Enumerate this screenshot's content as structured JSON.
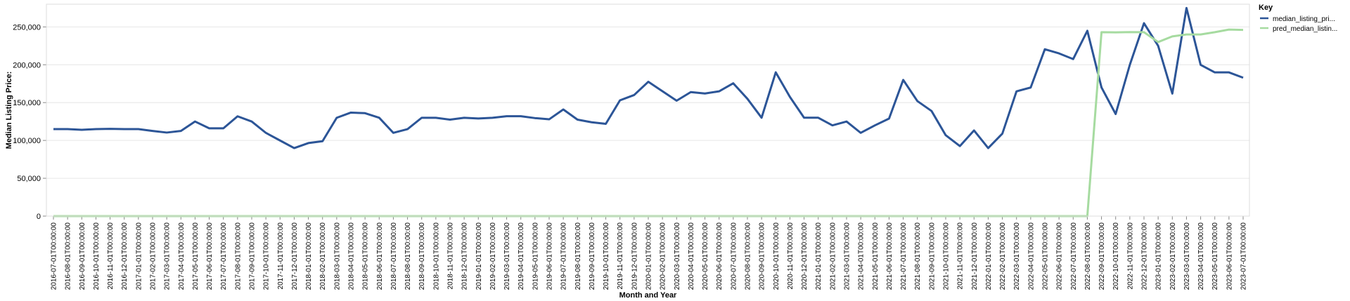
{
  "chart_data": {
    "type": "line",
    "title": "",
    "xlabel": "Month and Year",
    "ylabel": "Median Listing Price:",
    "ylim": [
      0,
      280000
    ],
    "yticks": [
      0,
      50000,
      100000,
      150000,
      200000,
      250000
    ],
    "ytick_labels": [
      "0",
      "50,000",
      "100,000",
      "150,000",
      "200,000",
      "250,000"
    ],
    "grid": true,
    "legend": {
      "title": "Key",
      "placement": "top-right"
    },
    "x": [
      "2016-07-01T00:00:00",
      "2016-08-01T00:00:00",
      "2016-09-01T00:00:00",
      "2016-10-01T00:00:00",
      "2016-11-01T00:00:00",
      "2016-12-01T00:00:00",
      "2017-01-01T00:00:00",
      "2017-02-01T00:00:00",
      "2017-03-01T00:00:00",
      "2017-04-01T00:00:00",
      "2017-05-01T00:00:00",
      "2017-06-01T00:00:00",
      "2017-07-01T00:00:00",
      "2017-08-01T00:00:00",
      "2017-09-01T00:00:00",
      "2017-10-01T00:00:00",
      "2017-11-01T00:00:00",
      "2017-12-01T00:00:00",
      "2018-01-01T00:00:00",
      "2018-02-01T00:00:00",
      "2018-03-01T00:00:00",
      "2018-04-01T00:00:00",
      "2018-05-01T00:00:00",
      "2018-06-01T00:00:00",
      "2018-07-01T00:00:00",
      "2018-08-01T00:00:00",
      "2018-09-01T00:00:00",
      "2018-10-01T00:00:00",
      "2018-11-01T00:00:00",
      "2018-12-01T00:00:00",
      "2019-01-01T00:00:00",
      "2019-02-01T00:00:00",
      "2019-03-01T00:00:00",
      "2019-04-01T00:00:00",
      "2019-05-01T00:00:00",
      "2019-06-01T00:00:00",
      "2019-07-01T00:00:00",
      "2019-08-01T00:00:00",
      "2019-09-01T00:00:00",
      "2019-10-01T00:00:00",
      "2019-11-01T00:00:00",
      "2019-12-01T00:00:00",
      "2020-01-01T00:00:00",
      "2020-02-01T00:00:00",
      "2020-03-01T00:00:00",
      "2020-04-01T00:00:00",
      "2020-05-01T00:00:00",
      "2020-06-01T00:00:00",
      "2020-07-01T00:00:00",
      "2020-08-01T00:00:00",
      "2020-09-01T00:00:00",
      "2020-10-01T00:00:00",
      "2020-11-01T00:00:00",
      "2020-12-01T00:00:00",
      "2021-01-01T00:00:00",
      "2021-02-01T00:00:00",
      "2021-03-01T00:00:00",
      "2021-04-01T00:00:00",
      "2021-05-01T00:00:00",
      "2021-06-01T00:00:00",
      "2021-07-01T00:00:00",
      "2021-08-01T00:00:00",
      "2021-09-01T00:00:00",
      "2021-10-01T00:00:00",
      "2021-11-01T00:00:00",
      "2021-12-01T00:00:00",
      "2022-01-01T00:00:00",
      "2022-02-01T00:00:00",
      "2022-03-01T00:00:00",
      "2022-04-01T00:00:00",
      "2022-05-01T00:00:00",
      "2022-06-01T00:00:00",
      "2022-07-01T00:00:00",
      "2022-08-01T00:00:00",
      "2022-09-01T00:00:00",
      "2022-10-01T00:00:00",
      "2022-11-01T00:00:00",
      "2022-12-01T00:00:00",
      "2023-01-01T00:00:00",
      "2023-02-01T00:00:00",
      "2023-03-01T00:00:00",
      "2023-04-01T00:00:00",
      "2023-05-01T00:00:00",
      "2023-06-01T00:00:00",
      "2023-07-01T00:00:00"
    ],
    "series": [
      {
        "name": "median_listing_pri...",
        "color": "#2c5597",
        "values": [
          115000,
          115000,
          114000,
          115000,
          115300,
          115000,
          115000,
          112500,
          110400,
          112500,
          125000,
          116000,
          116000,
          131900,
          125000,
          110000,
          99900,
          89900,
          96500,
          99000,
          129900,
          136800,
          136000,
          130000,
          110000,
          114900,
          129900,
          129900,
          127500,
          129900,
          129000,
          129900,
          132000,
          132000,
          129500,
          127900,
          140900,
          127500,
          124000,
          121900,
          153000,
          160000,
          177500,
          165000,
          152500,
          163900,
          162000,
          164900,
          175500,
          155000,
          130000,
          190000,
          157500,
          130000,
          130000,
          119900,
          125000,
          110000,
          119900,
          128900,
          180000,
          152000,
          138900,
          106900,
          92500,
          113200,
          89900,
          109000,
          164900,
          169900,
          220500,
          215000,
          207500,
          244900,
          170000,
          134900,
          199900,
          254900,
          225000,
          161900,
          275000,
          199900,
          189900,
          189900,
          182900
        ]
      },
      {
        "name": "pred_median_listin...",
        "color": "#a6dba0",
        "values": [
          0,
          0,
          0,
          0,
          0,
          0,
          0,
          0,
          0,
          0,
          0,
          0,
          0,
          0,
          0,
          0,
          0,
          0,
          0,
          0,
          0,
          0,
          0,
          0,
          0,
          0,
          0,
          0,
          0,
          0,
          0,
          0,
          0,
          0,
          0,
          0,
          0,
          0,
          0,
          0,
          0,
          0,
          0,
          0,
          0,
          0,
          0,
          0,
          0,
          0,
          0,
          0,
          0,
          0,
          0,
          0,
          0,
          0,
          0,
          0,
          0,
          0,
          0,
          0,
          0,
          0,
          0,
          0,
          0,
          0,
          0,
          0,
          0,
          0,
          243000,
          242800,
          243200,
          243000,
          230000,
          237500,
          240000,
          240000,
          243000,
          246500,
          246000
        ]
      }
    ]
  }
}
